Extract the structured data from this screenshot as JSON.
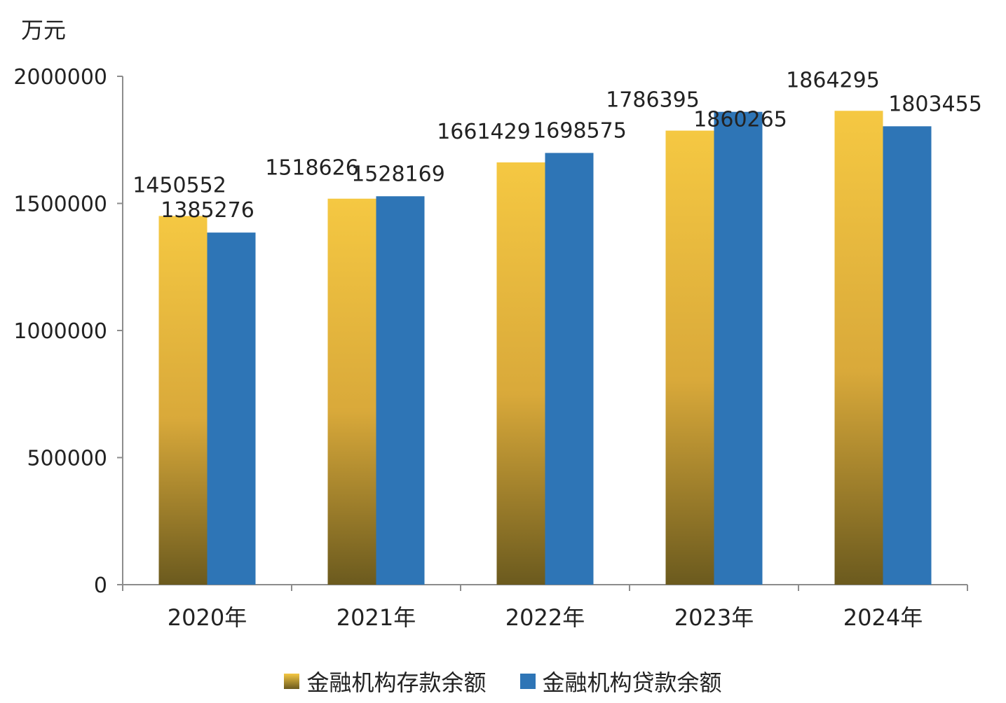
{
  "chart_data": {
    "type": "bar",
    "unit_label": "万元",
    "categories": [
      "2020年",
      "2021年",
      "2022年",
      "2023年",
      "2024年"
    ],
    "series": [
      {
        "name": "金融机构存款余额",
        "values": [
          1450552,
          1518626,
          1661429,
          1786395,
          1864295
        ]
      },
      {
        "name": "金融机构贷款余额",
        "values": [
          1385276,
          1528169,
          1698575,
          1860265,
          1803455
        ]
      }
    ],
    "ylim": [
      0,
      2000000
    ],
    "yticks": [
      "0",
      "500000",
      "1000000",
      "1500000",
      "2000000"
    ],
    "grid": false,
    "legend": "bottom",
    "colors": {
      "deposit_top": "#f5c842",
      "deposit_bottom": "#6b5a1e",
      "loan": "#2e75b6"
    }
  }
}
